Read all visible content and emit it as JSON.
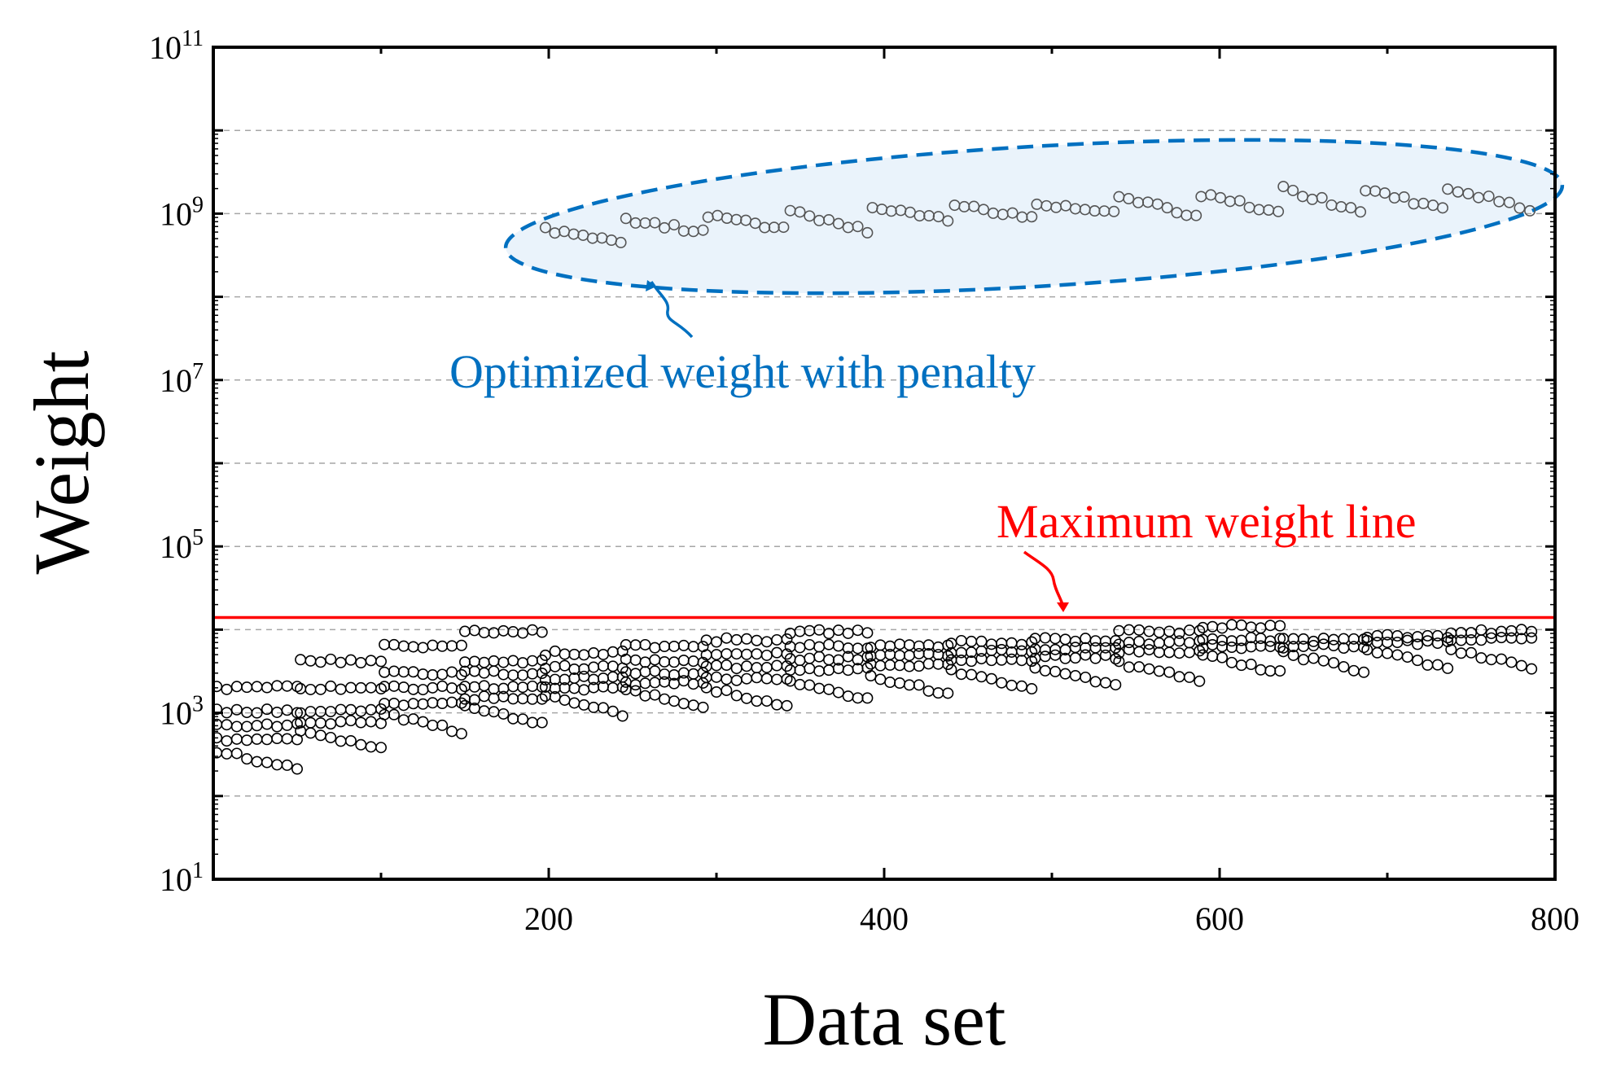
{
  "chart_data": {
    "type": "scatter",
    "title": "",
    "xlabel": "Data set",
    "ylabel": "Weight",
    "xlim": [
      0,
      800
    ],
    "ylim": [
      10,
      100000000000
    ],
    "yscale": "log",
    "x_ticks": [
      200,
      400,
      600,
      800
    ],
    "x_tick_labels": [
      "200",
      "400",
      "600",
      "800"
    ],
    "y_ticks": [
      10,
      1000,
      100000,
      10000000,
      1000000000,
      100000000000
    ],
    "y_tick_labels": [
      {
        "base": "10",
        "exp": "1"
      },
      {
        "base": "10",
        "exp": "3"
      },
      {
        "base": "10",
        "exp": "5"
      },
      {
        "base": "10",
        "exp": "7"
      },
      {
        "base": "10",
        "exp": "9"
      },
      {
        "base": "10",
        "exp": "11"
      }
    ],
    "grid": {
      "y_major": true,
      "style": "dashed"
    },
    "marker": {
      "shape": "open-circle",
      "color": "#000000"
    },
    "reference_lines": [
      {
        "label": "Maximum weight line",
        "y": 14000,
        "color": "#ff0000"
      }
    ],
    "annotations": [
      {
        "text": "Optimized weight with penalty",
        "color": "#0070c0",
        "target": "penalty-group"
      },
      {
        "text": "Maximum weight line",
        "color": "#ff0000",
        "target": "max-weight-line"
      }
    ],
    "highlight_region": {
      "color": "#0070c0",
      "fill": "#eaf3fb",
      "style": "dashed-ellipse"
    },
    "series": [
      {
        "name": "",
        "role": "penalty-group",
        "color": "#555555",
        "groups": [
          {
            "x": [
              198,
              243
            ],
            "y_start": 650000000,
            "y_end": 430000000
          },
          {
            "x": [
              246,
              292
            ],
            "y_start": 860000000,
            "y_end": 600000000
          },
          {
            "x": [
              295,
              340
            ],
            "y_start": 950000000,
            "y_end": 650000000
          },
          {
            "x": [
              344,
              390
            ],
            "y_start": 1050000000,
            "y_end": 620000000
          },
          {
            "x": [
              393,
              438
            ],
            "y_start": 1200000000,
            "y_end": 820000000
          },
          {
            "x": [
              442,
              488
            ],
            "y_start": 1300000000,
            "y_end": 900000000
          },
          {
            "x": [
              491,
              537
            ],
            "y_start": 1300000000,
            "y_end": 1000000000
          },
          {
            "x": [
              540,
              586
            ],
            "y_start": 1600000000,
            "y_end": 950000000
          },
          {
            "x": [
              589,
              635
            ],
            "y_start": 1700000000,
            "y_end": 1050000000
          },
          {
            "x": [
              638,
              684
            ],
            "y_start": 2000000000,
            "y_end": 1050000000
          },
          {
            "x": [
              687,
              733
            ],
            "y_start": 2000000000,
            "y_end": 1100000000
          },
          {
            "x": [
              736,
              785
            ],
            "y_start": 2100000000,
            "y_end": 1100000000
          }
        ]
      },
      {
        "name": "",
        "role": "feasible",
        "color": "#000000",
        "blocks": [
          {
            "x": [
              2,
              50
            ],
            "levels": [
              2000,
              1050,
              720,
              480,
              350
            ]
          },
          {
            "x": [
              52,
              100
            ],
            "levels": [
              4200,
              2000,
              1050,
              780,
              620
            ]
          },
          {
            "x": [
              102,
              148
            ],
            "levels": [
              6300,
              3000,
              2000,
              1300,
              980
            ]
          },
          {
            "x": [
              150,
              196
            ],
            "levels": [
              9500,
              4200,
              3000,
              2000,
              1500,
              1200
            ]
          },
          {
            "x": [
              198,
              244
            ],
            "levels": [
              5200,
              3500,
              2600,
              2000,
              1600
            ]
          },
          {
            "x": [
              246,
              292
            ],
            "levels": [
              6300,
              4200,
              3000,
              2300,
              1900
            ]
          },
          {
            "x": [
              294,
              342
            ],
            "levels": [
              7500,
              5200,
              3600,
              2600,
              2000
            ]
          },
          {
            "x": [
              344,
              390
            ],
            "levels": [
              9500,
              6300,
              4500,
              3300,
              2400
            ]
          },
          {
            "x": [
              392,
              438
            ],
            "levels": [
              6300,
              5000,
              3800,
              2800
            ]
          },
          {
            "x": [
              440,
              488
            ],
            "levels": [
              7000,
              5500,
              4400,
              3200
            ]
          },
          {
            "x": [
              490,
              538
            ],
            "levels": [
              7600,
              6000,
              4700,
              3500
            ]
          },
          {
            "x": [
              540,
              588
            ],
            "levels": [
              9500,
              7000,
              5500,
              4000
            ]
          },
          {
            "x": [
              590,
              636
            ],
            "levels": [
              11000,
              7600,
              6300,
              5000
            ]
          },
          {
            "x": [
              638,
              686
            ],
            "levels": [
              7600,
              6300,
              5200
            ]
          },
          {
            "x": [
              688,
              736
            ],
            "levels": [
              8300,
              7000,
              5800
            ]
          },
          {
            "x": [
              738,
              786
            ],
            "levels": [
              9500,
              7600,
              5800
            ]
          }
        ]
      }
    ]
  }
}
